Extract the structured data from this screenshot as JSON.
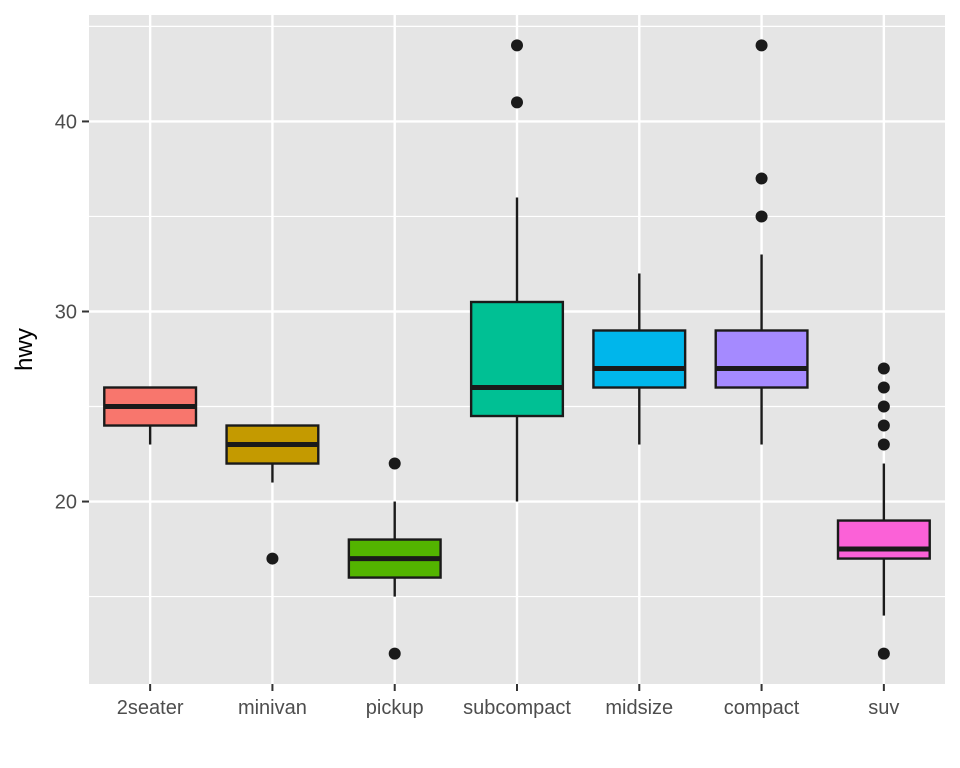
{
  "chart_data": {
    "type": "boxplot",
    "title": "",
    "xlabel": "",
    "ylabel": "hwy",
    "ylim": [
      10.4,
      45.6
    ],
    "yticks": [
      20,
      30,
      40
    ],
    "ytick_labels": [
      "20",
      "30",
      "40"
    ],
    "grid": true,
    "legend": "none",
    "panel_color": "#e5e5e5",
    "grid_color": "#ffffff",
    "box_outline_color": "#1a1a1a",
    "categories": [
      "2seater",
      "minivan",
      "pickup",
      "subcompact",
      "midsize",
      "compact",
      "suv"
    ],
    "boxes": [
      {
        "category": "2seater",
        "color": "#F8766D",
        "whisker_low": 23,
        "q1": 24,
        "median": 25,
        "q3": 26,
        "whisker_high": 26,
        "outliers": []
      },
      {
        "category": "minivan",
        "color": "#C49A00",
        "whisker_low": 21,
        "q1": 22,
        "median": 23,
        "q3": 24,
        "whisker_high": 24,
        "outliers": [
          17
        ]
      },
      {
        "category": "pickup",
        "color": "#53B400",
        "whisker_low": 15,
        "q1": 16,
        "median": 17,
        "q3": 18,
        "whisker_high": 20,
        "outliers": [
          22,
          12
        ]
      },
      {
        "category": "subcompact",
        "color": "#00C094",
        "whisker_low": 20,
        "q1": 24.5,
        "median": 26,
        "q3": 30.5,
        "whisker_high": 36,
        "outliers": [
          44,
          41
        ]
      },
      {
        "category": "midsize",
        "color": "#00B6EB",
        "whisker_low": 23,
        "q1": 26,
        "median": 27,
        "q3": 29,
        "whisker_high": 32,
        "outliers": []
      },
      {
        "category": "compact",
        "color": "#A58AFF",
        "whisker_low": 23,
        "q1": 26,
        "median": 27,
        "q3": 29,
        "whisker_high": 33,
        "outliers": [
          44,
          37,
          35
        ]
      },
      {
        "category": "suv",
        "color": "#FB61D7",
        "whisker_low": 14,
        "q1": 17,
        "median": 17.5,
        "q3": 19,
        "whisker_high": 22,
        "outliers": [
          27,
          26,
          25,
          24,
          23,
          12
        ]
      }
    ]
  }
}
